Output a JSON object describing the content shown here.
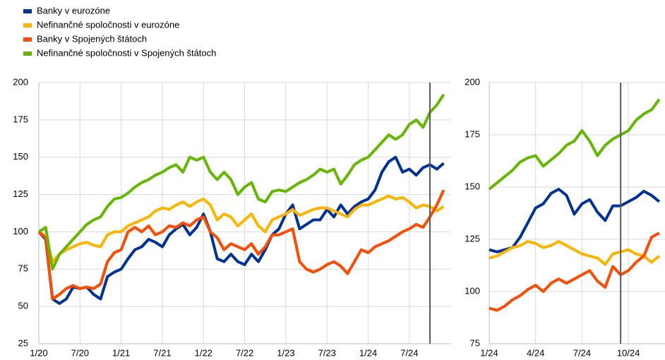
{
  "chart_data": [
    {
      "type": "line",
      "categories": [
        "1/20",
        null,
        null,
        null,
        null,
        null,
        "7/20",
        null,
        null,
        null,
        null,
        null,
        "1/21",
        null,
        null,
        null,
        null,
        null,
        "7/21",
        null,
        null,
        null,
        null,
        null,
        "1/22",
        null,
        null,
        null,
        null,
        null,
        "7/22",
        null,
        null,
        null,
        null,
        null,
        "1/23",
        null,
        null,
        null,
        null,
        null,
        "7/23",
        null,
        null,
        null,
        null,
        null,
        "1/24",
        null,
        null,
        null,
        null,
        null,
        "7/24",
        null,
        null,
        null,
        null,
        null
      ],
      "series": [
        {
          "name": "Banky v eurozóne",
          "color": "#003299",
          "values": [
            100,
            95,
            55,
            52,
            55,
            63,
            62,
            63,
            58,
            55,
            70,
            73,
            75,
            82,
            88,
            90,
            95,
            93,
            90,
            98,
            102,
            105,
            98,
            103,
            112,
            100,
            82,
            80,
            85,
            80,
            78,
            85,
            80,
            88,
            98,
            102,
            112,
            118,
            102,
            105,
            108,
            108,
            115,
            110,
            118,
            112,
            117,
            120,
            122,
            128,
            140,
            147,
            150,
            140,
            142,
            138,
            143,
            145,
            142,
            146
          ]
        },
        {
          "name": "Nefinančné spoločnosti v eurozóne",
          "color": "#ffb400",
          "values": [
            100,
            97,
            80,
            85,
            88,
            90,
            92,
            93,
            91,
            90,
            98,
            100,
            100,
            104,
            106,
            108,
            110,
            114,
            116,
            115,
            118,
            120,
            117,
            120,
            122,
            118,
            108,
            112,
            110,
            104,
            108,
            112,
            104,
            100,
            108,
            110,
            112,
            115,
            111,
            113,
            115,
            116,
            116,
            114,
            112,
            110,
            115,
            118,
            118,
            120,
            122,
            124,
            122,
            123,
            120,
            116,
            118,
            117,
            114,
            117
          ]
        },
        {
          "name": "Banky v Spojených štátoch",
          "color": "#ff4b00",
          "values": [
            100,
            96,
            55,
            58,
            62,
            64,
            62,
            63,
            62,
            65,
            80,
            86,
            88,
            100,
            103,
            100,
            104,
            98,
            100,
            104,
            103,
            106,
            104,
            108,
            110,
            100,
            96,
            88,
            92,
            90,
            88,
            92,
            85,
            90,
            98,
            98,
            100,
            102,
            80,
            75,
            73,
            75,
            78,
            80,
            77,
            72,
            80,
            88,
            86,
            90,
            92,
            94,
            97,
            100,
            102,
            105,
            103,
            110,
            118,
            128
          ]
        },
        {
          "name": "Nefinančné spoločnosti v Spojených štátoch",
          "color": "#65b800",
          "values": [
            100,
            103,
            75,
            85,
            90,
            95,
            100,
            105,
            108,
            110,
            117,
            122,
            123,
            126,
            130,
            133,
            135,
            138,
            140,
            143,
            145,
            140,
            150,
            148,
            150,
            140,
            135,
            140,
            135,
            125,
            130,
            133,
            122,
            120,
            127,
            128,
            127,
            130,
            133,
            135,
            138,
            142,
            140,
            142,
            132,
            138,
            145,
            148,
            150,
            155,
            160,
            165,
            162,
            165,
            172,
            175,
            170,
            180,
            185,
            192
          ]
        }
      ],
      "ylim": [
        25,
        200
      ],
      "yticks": [
        25,
        50,
        75,
        100,
        125,
        150,
        175,
        200
      ],
      "grid": true,
      "vline": 57
    },
    {
      "type": "line",
      "categories": [
        "1/24",
        null,
        null,
        null,
        null,
        null,
        "4/24",
        null,
        null,
        null,
        null,
        null,
        "7/24",
        null,
        null,
        null,
        null,
        null,
        "10/24",
        null,
        null,
        null,
        null
      ],
      "series": [
        {
          "color": "#003299",
          "values": [
            120,
            119,
            120,
            121,
            126,
            133,
            140,
            142,
            147,
            149,
            146,
            137,
            142,
            144,
            138,
            134,
            141,
            141,
            143,
            145,
            148,
            146,
            143
          ]
        },
        {
          "color": "#ffb400",
          "values": [
            116,
            117,
            119,
            121,
            122,
            124,
            123,
            121,
            122,
            124,
            122,
            120,
            118,
            117,
            116,
            113,
            118,
            119,
            120,
            118,
            117,
            114,
            117
          ]
        },
        {
          "color": "#ff4b00",
          "values": [
            92,
            91,
            93,
            96,
            98,
            101,
            103,
            100,
            104,
            106,
            104,
            106,
            108,
            110,
            105,
            102,
            112,
            108,
            110,
            114,
            117,
            126,
            128
          ]
        },
        {
          "color": "#65b800",
          "values": [
            149,
            152,
            155,
            158,
            162,
            164,
            165,
            160,
            163,
            166,
            170,
            172,
            177,
            172,
            165,
            170,
            173,
            175,
            177,
            182,
            185,
            187,
            192
          ]
        }
      ],
      "ylim": [
        75,
        200
      ],
      "yticks": [
        75,
        100,
        125,
        150,
        175,
        200
      ],
      "grid": true,
      "vline": 17
    }
  ]
}
